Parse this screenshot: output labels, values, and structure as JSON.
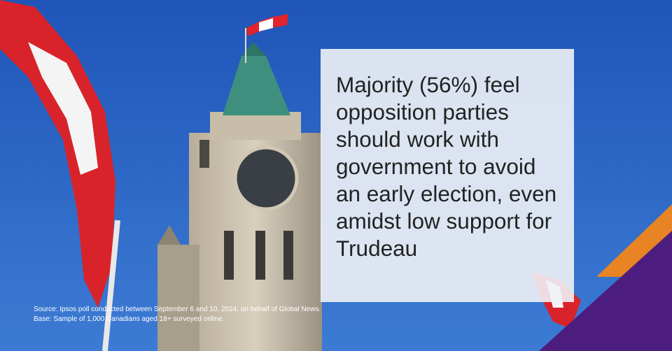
{
  "headline": "Majority (56%) feel opposition parties should work with government to avoid an early election, even amidst low support for Trudeau",
  "source": {
    "line1": "Source: Ipsos poll conducted between September 6 and 10, 2024, on behalf of Global News.",
    "line2": "Base: Sample of 1,000 Canadians aged 18+ surveyed online."
  }
}
